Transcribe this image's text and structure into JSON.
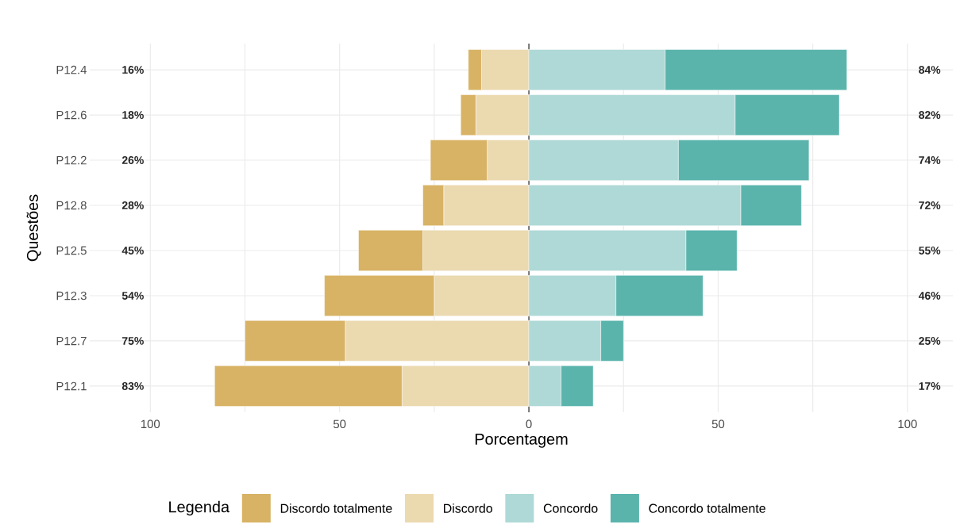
{
  "chart_data": {
    "type": "bar",
    "orientation": "horizontal",
    "stacked": true,
    "xlabel": "Porcentagem",
    "ylabel": "Questões",
    "legend_title": "Legenda",
    "legend": "bottom",
    "grid": true,
    "categories": [
      "P12.4",
      "P12.6",
      "P12.2",
      "P12.8",
      "P12.5",
      "P12.3",
      "P12.7",
      "P12.1"
    ],
    "series": [
      {
        "name": "Discordo",
        "color": "#ebd9b0",
        "values": [
          -12.5,
          -14,
          -11,
          -22.5,
          -28,
          -25,
          -48.5,
          -33.5
        ]
      },
      {
        "name": "Discordo totalmente",
        "color": "#d8b365",
        "values": [
          -3.5,
          -4,
          -15,
          -5.5,
          -17,
          -29,
          -26.5,
          -49.5
        ]
      },
      {
        "name": "Concordo",
        "color": "#aed9d6",
        "values": [
          36,
          54.5,
          39.5,
          56,
          41.5,
          23,
          19,
          8.5
        ]
      },
      {
        "name": "Concordo totalmente",
        "color": "#5ab4ac",
        "values": [
          48,
          27.5,
          34.5,
          16,
          13.5,
          23,
          6,
          8.5
        ]
      }
    ],
    "xlim": [
      -116,
      112
    ],
    "xticks": [
      {
        "value": -100,
        "label": "100"
      },
      {
        "value": -75,
        "label": null
      },
      {
        "value": -50,
        "label": "50"
      },
      {
        "value": -25,
        "label": null
      },
      0,
      {
        "value": 25,
        "label": null
      },
      {
        "value": 50,
        "label": "50"
      },
      {
        "value": 75,
        "label": null
      },
      {
        "value": 100,
        "label": "100"
      }
    ],
    "ref_lines": [
      {
        "axis": "x",
        "value": 0,
        "color": "#000000"
      }
    ],
    "annotations": [
      "16%",
      "18%",
      "26%",
      "28%",
      "45%",
      "54%",
      "75%",
      "83%",
      "84%",
      "82%",
      "74%",
      "72%",
      "55%",
      "46%",
      "25%",
      "17%"
    ]
  }
}
